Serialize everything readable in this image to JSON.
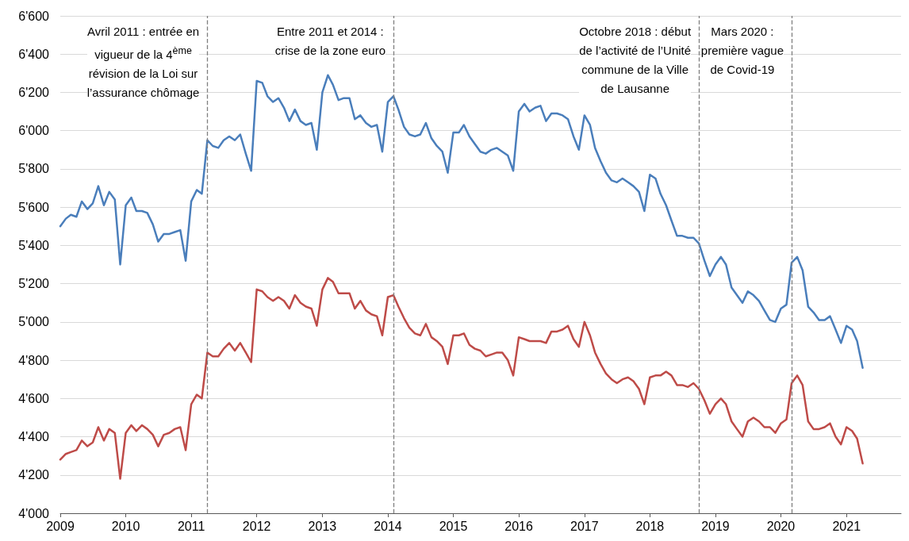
{
  "chart_data": {
    "type": "line",
    "x": [
      "2009-01",
      "2009-02",
      "2009-03",
      "2009-04",
      "2009-05",
      "2009-06",
      "2009-07",
      "2009-08",
      "2009-09",
      "2009-10",
      "2009-11",
      "2009-12",
      "2010-01",
      "2010-02",
      "2010-03",
      "2010-04",
      "2010-05",
      "2010-06",
      "2010-07",
      "2010-08",
      "2010-09",
      "2010-10",
      "2010-11",
      "2010-12",
      "2011-01",
      "2011-02",
      "2011-03",
      "2011-04",
      "2011-05",
      "2011-06",
      "2011-07",
      "2011-08",
      "2011-09",
      "2011-10",
      "2011-11",
      "2011-12",
      "2012-01",
      "2012-02",
      "2012-03",
      "2012-04",
      "2012-05",
      "2012-06",
      "2012-07",
      "2012-08",
      "2012-09",
      "2012-10",
      "2012-11",
      "2012-12",
      "2013-01",
      "2013-02",
      "2013-03",
      "2013-04",
      "2013-05",
      "2013-06",
      "2013-07",
      "2013-08",
      "2013-09",
      "2013-10",
      "2013-11",
      "2013-12",
      "2014-01",
      "2014-02",
      "2014-03",
      "2014-04",
      "2014-05",
      "2014-06",
      "2014-07",
      "2014-08",
      "2014-09",
      "2014-10",
      "2014-11",
      "2014-12",
      "2015-01",
      "2015-02",
      "2015-03",
      "2015-04",
      "2015-05",
      "2015-06",
      "2015-07",
      "2015-08",
      "2015-09",
      "2015-10",
      "2015-11",
      "2015-12",
      "2016-01",
      "2016-02",
      "2016-03",
      "2016-04",
      "2016-05",
      "2016-06",
      "2016-07",
      "2016-08",
      "2016-09",
      "2016-10",
      "2016-11",
      "2016-12",
      "2017-01",
      "2017-02",
      "2017-03",
      "2017-04",
      "2017-05",
      "2017-06",
      "2017-07",
      "2017-08",
      "2017-09",
      "2017-10",
      "2017-11",
      "2017-12",
      "2018-01",
      "2018-02",
      "2018-03",
      "2018-04",
      "2018-05",
      "2018-06",
      "2018-07",
      "2018-08",
      "2018-09",
      "2018-10",
      "2018-11",
      "2018-12",
      "2019-01",
      "2019-02",
      "2019-03",
      "2019-04",
      "2019-05",
      "2019-06",
      "2019-07",
      "2019-08",
      "2019-09",
      "2019-10",
      "2019-11",
      "2019-12",
      "2020-01",
      "2020-02",
      "2020-03",
      "2020-04",
      "2020-05",
      "2020-06",
      "2020-07",
      "2020-08",
      "2020-09",
      "2020-10",
      "2020-11",
      "2020-12",
      "2021-01",
      "2021-02",
      "2021-03",
      "2021-04"
    ],
    "series": [
      {
        "color": "#4a7ebb",
        "values": [
          5500,
          5540,
          5560,
          5550,
          5630,
          5590,
          5620,
          5710,
          5610,
          5680,
          5640,
          5300,
          5610,
          5650,
          5580,
          5580,
          5570,
          5510,
          5420,
          5460,
          5460,
          5470,
          5480,
          5320,
          5630,
          5690,
          5670,
          5950,
          5920,
          5910,
          5950,
          5970,
          5950,
          5980,
          5880,
          5790,
          6260,
          6250,
          6180,
          6150,
          6170,
          6120,
          6050,
          6110,
          6050,
          6030,
          6040,
          5900,
          6200,
          6290,
          6240,
          6160,
          6170,
          6170,
          6060,
          6080,
          6040,
          6020,
          6030,
          5890,
          6150,
          6180,
          6110,
          6020,
          5980,
          5970,
          5980,
          6040,
          5960,
          5920,
          5890,
          5780,
          5990,
          5990,
          6030,
          5970,
          5930,
          5890,
          5880,
          5900,
          5910,
          5890,
          5870,
          5790,
          6100,
          6140,
          6100,
          6120,
          6130,
          6050,
          6090,
          6090,
          6080,
          6060,
          5970,
          5900,
          6080,
          6030,
          5910,
          5840,
          5780,
          5740,
          5730,
          5750,
          5730,
          5710,
          5680,
          5580,
          5770,
          5750,
          5670,
          5610,
          5530,
          5450,
          5450,
          5440,
          5440,
          5410,
          5320,
          5240,
          5300,
          5340,
          5300,
          5180,
          5140,
          5100,
          5160,
          5140,
          5110,
          5060,
          5010,
          5000,
          5070,
          5090,
          5310,
          5340,
          5270,
          5080,
          5050,
          5010,
          5010,
          5030,
          4960,
          4890,
          4980,
          4960,
          4900,
          4760
        ]
      },
      {
        "color": "#be4b48",
        "values": [
          4280,
          4310,
          4320,
          4330,
          4380,
          4350,
          4370,
          4450,
          4380,
          4440,
          4420,
          4180,
          4420,
          4460,
          4430,
          4460,
          4440,
          4410,
          4350,
          4410,
          4420,
          4440,
          4450,
          4330,
          4570,
          4620,
          4600,
          4840,
          4820,
          4820,
          4860,
          4890,
          4850,
          4890,
          4840,
          4790,
          5170,
          5160,
          5130,
          5110,
          5130,
          5110,
          5070,
          5140,
          5100,
          5080,
          5070,
          4980,
          5170,
          5230,
          5210,
          5150,
          5150,
          5150,
          5070,
          5110,
          5060,
          5040,
          5030,
          4930,
          5130,
          5140,
          5080,
          5020,
          4970,
          4940,
          4930,
          4990,
          4920,
          4900,
          4870,
          4780,
          4930,
          4930,
          4940,
          4880,
          4860,
          4850,
          4820,
          4830,
          4840,
          4840,
          4800,
          4720,
          4920,
          4910,
          4900,
          4900,
          4900,
          4890,
          4950,
          4950,
          4960,
          4980,
          4910,
          4870,
          5000,
          4930,
          4840,
          4780,
          4730,
          4700,
          4680,
          4700,
          4710,
          4690,
          4650,
          4570,
          4710,
          4720,
          4720,
          4740,
          4720,
          4670,
          4670,
          4660,
          4680,
          4650,
          4590,
          4520,
          4570,
          4600,
          4570,
          4480,
          4440,
          4400,
          4480,
          4500,
          4480,
          4450,
          4450,
          4420,
          4470,
          4490,
          4680,
          4720,
          4670,
          4480,
          4440,
          4440,
          4450,
          4470,
          4400,
          4360,
          4450,
          4430,
          4390,
          4260
        ]
      }
    ],
    "xlim": [
      "2009-01",
      "2021-11"
    ],
    "xticks": [
      {
        "value": "2009-01",
        "label": "2009"
      },
      {
        "value": "2010-01",
        "label": "2010"
      },
      {
        "value": "2011-01",
        "label": "2011"
      },
      {
        "value": "2012-01",
        "label": "2012"
      },
      {
        "value": "2013-01",
        "label": "2013"
      },
      {
        "value": "2014-01",
        "label": "2014"
      },
      {
        "value": "2015-01",
        "label": "2015"
      },
      {
        "value": "2016-01",
        "label": "2016"
      },
      {
        "value": "2017-01",
        "label": "2017"
      },
      {
        "value": "2018-01",
        "label": "2018"
      },
      {
        "value": "2019-01",
        "label": "2019"
      },
      {
        "value": "2020-01",
        "label": "2020"
      },
      {
        "value": "2021-01",
        "label": "2021"
      }
    ],
    "ylim": [
      4000,
      6600
    ],
    "yticks": [
      {
        "value": 4000,
        "label": "4'000"
      },
      {
        "value": 4200,
        "label": "4'200"
      },
      {
        "value": 4400,
        "label": "4'400"
      },
      {
        "value": 4600,
        "label": "4'600"
      },
      {
        "value": 4800,
        "label": "4'800"
      },
      {
        "value": 5000,
        "label": "5'000"
      },
      {
        "value": 5200,
        "label": "5'200"
      },
      {
        "value": 5400,
        "label": "5'400"
      },
      {
        "value": 5600,
        "label": "5'600"
      },
      {
        "value": 5800,
        "label": "5'800"
      },
      {
        "value": 6000,
        "label": "6'000"
      },
      {
        "value": 6200,
        "label": "6'200"
      },
      {
        "value": 6400,
        "label": "6'400"
      },
      {
        "value": 6600,
        "label": "6'600"
      }
    ],
    "grid": "y",
    "line_style": "solid",
    "ref_lines": [
      {
        "axis": "x",
        "value": "2011-04",
        "label": "Avril 2011 : entrée en\nvigueur de la 4$^{ème}$\nrévision de la Loi sur\nl’assurance chômage",
        "color": "#7f7f7f",
        "line_style": "dashed"
      },
      {
        "axis": "x",
        "value": "2014-02",
        "label": "Entre 2011 et 2014 :\ncrise de la zone euro",
        "color": "#7f7f7f",
        "line_style": "dashed"
      },
      {
        "axis": "x",
        "value": "2018-10",
        "label": "Octobre 2018 : début\nde l’activité de l’Unité\ncommune de la Ville\nde Lausanne",
        "color": "#7f7f7f",
        "line_style": "dashed"
      },
      {
        "axis": "x",
        "value": "2020-03",
        "label": "Mars 2020 :\npremière vague\nde Covid-19",
        "color": "#7f7f7f",
        "line_style": "dashed"
      }
    ]
  }
}
